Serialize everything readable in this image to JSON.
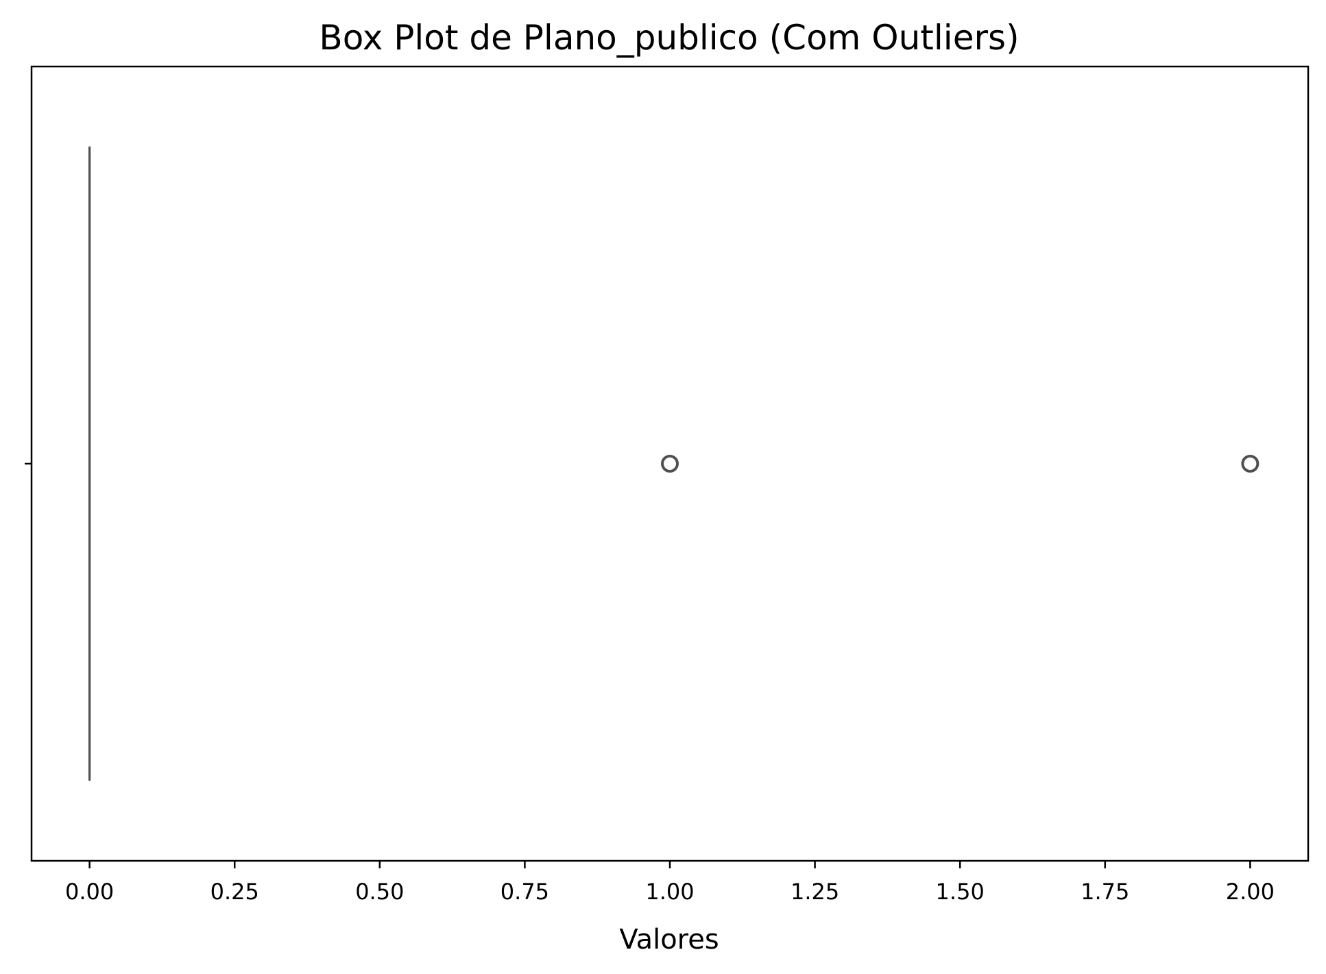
{
  "chart_data": {
    "type": "box",
    "title": "Box Plot de Plano_publico (Com Outliers)",
    "xlabel": "Valores",
    "ylabel": "",
    "orientation": "horizontal",
    "xlim": [
      -0.1,
      2.1
    ],
    "x_ticks": [
      0.0,
      0.25,
      0.5,
      0.75,
      1.0,
      1.25,
      1.5,
      1.75,
      2.0
    ],
    "x_tick_labels": [
      "0.00",
      "0.25",
      "0.50",
      "0.75",
      "1.00",
      "1.25",
      "1.50",
      "1.75",
      "2.00"
    ],
    "series": [
      {
        "min": 0.0,
        "q1": 0.0,
        "median": 0.0,
        "q3": 0.0,
        "max": 0.0,
        "outliers": [
          1.0,
          2.0
        ]
      }
    ],
    "grid": false,
    "colors": {
      "box": "#505050",
      "frame": "#000000",
      "background": "#ffffff"
    }
  }
}
